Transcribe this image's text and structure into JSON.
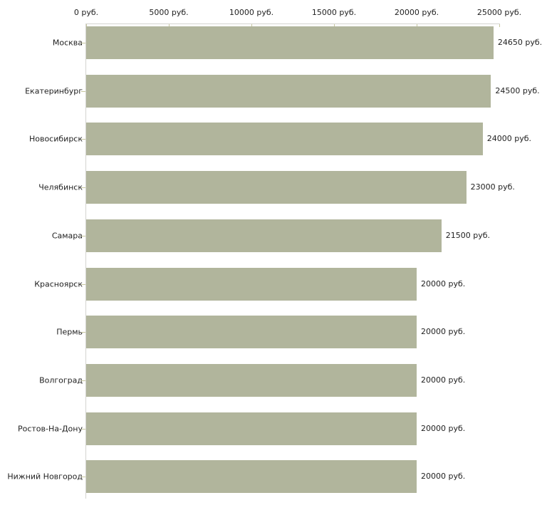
{
  "chart_data": {
    "type": "bar",
    "orientation": "horizontal",
    "title": "",
    "categories": [
      "Москва",
      "Екатеринбург",
      "Новосибирск",
      "Челябинск",
      "Самара",
      "Красноярск",
      "Пермь",
      "Волгоград",
      "Ростов-На-Дону",
      "Нижний Новгород"
    ],
    "values": [
      24650,
      24500,
      24000,
      23000,
      21500,
      20000,
      20000,
      20000,
      20000,
      20000
    ],
    "value_labels": [
      "24650 руб.",
      "24500 руб.",
      "24000 руб.",
      "23000 руб.",
      "21500 руб.",
      "20000 руб.",
      "20000 руб.",
      "20000 руб.",
      "20000 руб.",
      "20000 руб."
    ],
    "x_ticks": [
      0,
      5000,
      10000,
      15000,
      20000,
      25000
    ],
    "x_tick_labels": [
      "0 руб.",
      "5000 руб.",
      "10000 руб.",
      "15000 руб.",
      "20000 руб.",
      "25000 руб."
    ],
    "xlim": [
      0,
      25000
    ],
    "unit": "руб.",
    "grid": false,
    "legend": false,
    "axis_position": "top",
    "colors": {
      "bar": "#b1b59c",
      "axis_line": "#d4d4d0",
      "tick": "#c6c69e",
      "text": "#222222",
      "background": "#ffffff"
    }
  }
}
